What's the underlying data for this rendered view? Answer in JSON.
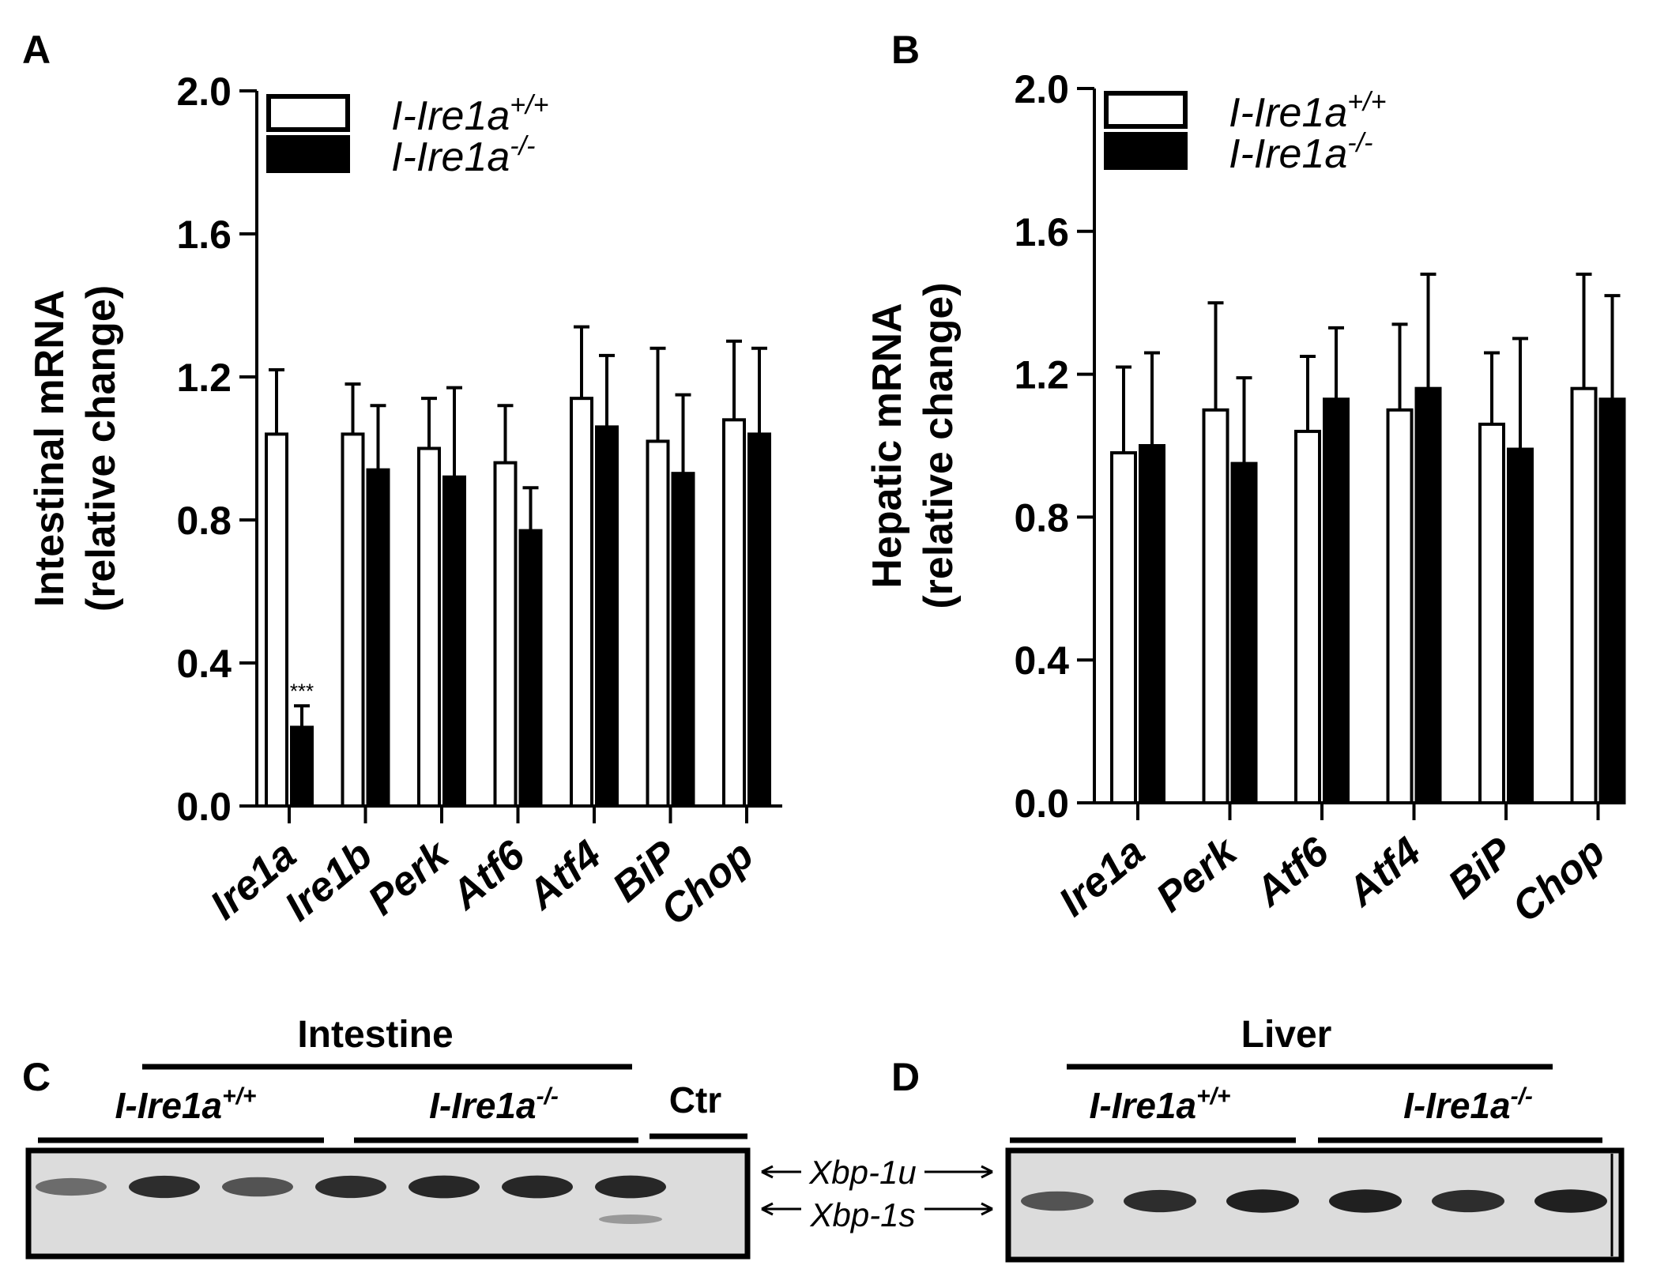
{
  "colors": {
    "bar_control": "#ffffff",
    "bar_knockout": "#000000",
    "ink": "#000000",
    "gel_bg": "#dcdcdc",
    "gel_band": "#1a1a1a"
  },
  "panel_a": {
    "letter": "A"
  },
  "panel_b": {
    "letter": "B"
  },
  "panel_c": {
    "letter": "C",
    "title": "Intestine",
    "group1": {
      "prefix": "I-Ire1a",
      "sup": "+/+"
    },
    "group2": {
      "prefix": "I-Ire1a",
      "sup": "-/-"
    },
    "ctr_label": "Ctr",
    "lane_intensities": [
      0.35,
      0.85,
      0.55,
      0.85,
      0.9,
      0.9,
      0.9
    ]
  },
  "panel_d": {
    "letter": "D",
    "title": "Liver",
    "group1": {
      "prefix": "I-Ire1a",
      "sup": "+/+"
    },
    "group2": {
      "prefix": "I-Ire1a",
      "sup": "-/-"
    },
    "lane_intensities": [
      0.55,
      0.85,
      0.95,
      0.95,
      0.85,
      0.95
    ]
  },
  "gel_markers": {
    "upper": "Xbp-1u",
    "lower": "Xbp-1s"
  },
  "chart_data": [
    {
      "type": "bar",
      "panel": "A",
      "ylabel_line1": "Intestinal mRNA",
      "ylabel_line2": "(relative change)",
      "ylim": [
        0,
        2.0
      ],
      "yticks": [
        "0.0",
        "0.4",
        "0.8",
        "1.2",
        "1.6",
        "2.0"
      ],
      "categories": [
        "Ire1a",
        "Ire1b",
        "Perk",
        "Atf6",
        "Atf4",
        "BiP",
        "Chop"
      ],
      "legend": {
        "placement": "top-left",
        "entries": [
          {
            "prefix": "I-Ire1a",
            "sup": "+/+"
          },
          {
            "prefix": "I-Ire1a",
            "sup": "-/-"
          }
        ]
      },
      "series": [
        {
          "values": [
            1.04,
            1.04,
            1.0,
            0.96,
            1.14,
            1.02,
            1.08
          ],
          "errors": [
            0.18,
            0.14,
            0.14,
            0.16,
            0.2,
            0.26,
            0.22
          ]
        },
        {
          "values": [
            0.22,
            0.94,
            0.92,
            0.77,
            1.06,
            0.93,
            1.04
          ],
          "errors": [
            0.06,
            0.18,
            0.25,
            0.12,
            0.2,
            0.22,
            0.24
          ]
        }
      ],
      "annotations": [
        {
          "series": 1,
          "category": "Ire1a",
          "text": "***"
        }
      ]
    },
    {
      "type": "bar",
      "panel": "B",
      "ylabel_line1": "Hepatic mRNA",
      "ylabel_line2": "(relative change)",
      "ylim": [
        0,
        2.0
      ],
      "yticks": [
        "0.0",
        "0.4",
        "0.8",
        "1.2",
        "1.6",
        "2.0"
      ],
      "categories": [
        "Ire1a",
        "Perk",
        "Atf6",
        "Atf4",
        "BiP",
        "Chop"
      ],
      "legend": {
        "placement": "top-left",
        "entries": [
          {
            "prefix": "I-Ire1a",
            "sup": "+/+"
          },
          {
            "prefix": "I-Ire1a",
            "sup": "-/-"
          }
        ]
      },
      "series": [
        {
          "values": [
            0.98,
            1.1,
            1.04,
            1.1,
            1.06,
            1.16
          ],
          "errors": [
            0.24,
            0.3,
            0.21,
            0.24,
            0.2,
            0.32
          ]
        },
        {
          "values": [
            1.0,
            0.95,
            1.13,
            1.16,
            0.99,
            1.13
          ],
          "errors": [
            0.26,
            0.24,
            0.2,
            0.32,
            0.31,
            0.29
          ]
        }
      ],
      "annotations": []
    }
  ]
}
